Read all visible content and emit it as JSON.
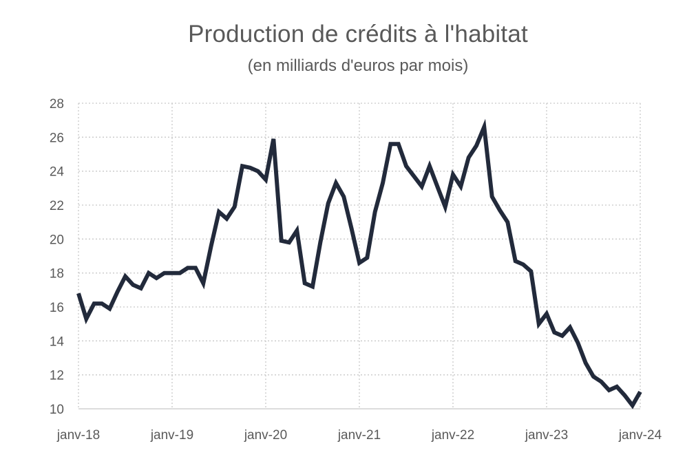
{
  "chart_data": {
    "type": "line",
    "title": "Production de crédits à l'habitat",
    "subtitle": "(en milliards d'euros par mois)",
    "xlabel": "",
    "ylabel": "",
    "ylim": [
      10,
      28
    ],
    "yticks": [
      "28",
      "26",
      "24",
      "22",
      "20",
      "18",
      "16",
      "14",
      "12",
      "10"
    ],
    "xticks": [
      "janv-18",
      "janv-19",
      "janv-20",
      "janv-21",
      "janv-22",
      "janv-23",
      "janv-24"
    ],
    "grid": true,
    "legend": "none",
    "line_color": "#222a3b",
    "x_start": "janv-18",
    "x_frequency": "monthly",
    "series": [
      {
        "name": "Production de crédits à l'habitat",
        "values": [
          16.8,
          15.3,
          16.2,
          16.2,
          15.9,
          16.9,
          17.8,
          17.3,
          17.1,
          18.0,
          17.7,
          18.0,
          18.0,
          18.0,
          18.3,
          18.3,
          17.4,
          19.6,
          21.6,
          21.2,
          21.9,
          24.3,
          24.2,
          24.0,
          23.5,
          25.9,
          19.9,
          19.8,
          20.5,
          17.4,
          17.2,
          19.8,
          22.1,
          23.3,
          22.5,
          20.6,
          18.6,
          18.9,
          21.6,
          23.3,
          25.6,
          25.6,
          24.3,
          23.7,
          23.1,
          24.3,
          23.1,
          21.9,
          23.8,
          23.1,
          24.8,
          25.5,
          26.6,
          22.5,
          21.7,
          21.0,
          18.7,
          18.5,
          18.1,
          15.0,
          15.6,
          14.5,
          14.3,
          14.8,
          13.9,
          12.7,
          11.9,
          11.6,
          11.1,
          11.3,
          10.8,
          10.2,
          11.0
        ]
      }
    ]
  }
}
